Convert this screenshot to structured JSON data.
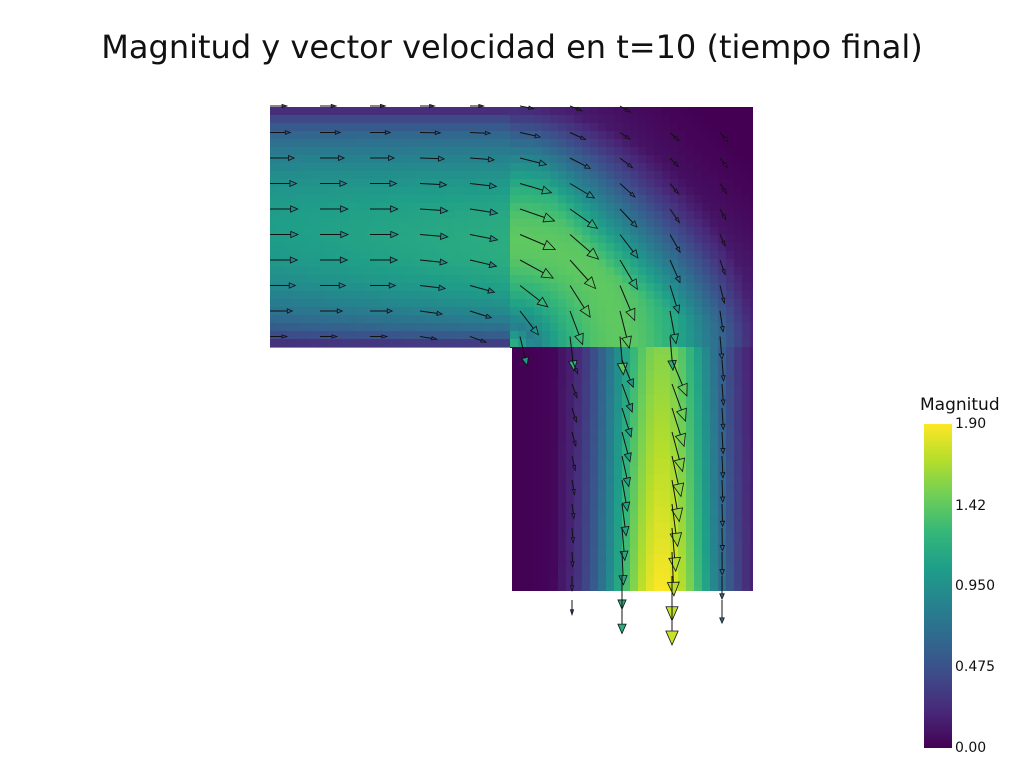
{
  "chart_data": {
    "type": "vector-field",
    "title": "Magnitud y vector velocidad en t=10 (tiempo final)",
    "domain": {
      "shape": "L-shaped channel",
      "inlet": "left",
      "outlet": "bottom"
    },
    "colorbar": {
      "title": "Magnitud",
      "colormap": "viridis",
      "range": [
        0.0,
        1.9
      ],
      "ticks": [
        {
          "value": 1.9,
          "label": "1.90"
        },
        {
          "value": 1.42,
          "label": "1.42"
        },
        {
          "value": 0.95,
          "label": "0.950"
        },
        {
          "value": 0.475,
          "label": "0.475"
        },
        {
          "value": 0.0,
          "label": "0.00"
        }
      ]
    },
    "colormap_stops": [
      "#440154",
      "#482878",
      "#3e4a89",
      "#31688e",
      "#26828e",
      "#1f9e89",
      "#35b779",
      "#6ece58",
      "#b5de2b",
      "#fde725"
    ],
    "vectors_note": "Inlet flow enters horizontally from the left at ~1.0, turns the corner and accelerates downward reaching ~1.9 near the outlet center."
  }
}
